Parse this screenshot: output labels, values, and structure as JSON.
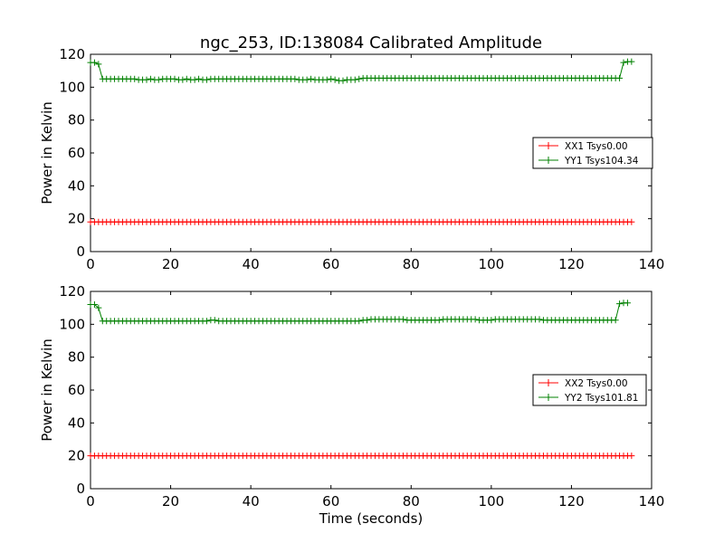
{
  "figure": {
    "title": "ngc_253, ID:138084 Calibrated Amplitude",
    "xlabel": "Time (seconds)",
    "background": "#ffffff"
  },
  "chart_data": [
    {
      "type": "line",
      "title": "ngc_253, ID:138084 Calibrated Amplitude",
      "xlabel": "",
      "ylabel": "Power in Kelvin",
      "xlim": [
        0,
        140
      ],
      "ylim": [
        0,
        120
      ],
      "xticks": [
        0,
        20,
        40,
        60,
        80,
        100,
        120,
        140
      ],
      "yticks": [
        0,
        20,
        40,
        60,
        80,
        100,
        120
      ],
      "grid": false,
      "legend_position": "right",
      "x_start": 0,
      "x_step": 1,
      "series": [
        {
          "name": "XX1 Tsys0.00",
          "color": "#ff0000",
          "marker": "+",
          "values": [
            18,
            18,
            18,
            18,
            18,
            18,
            18,
            18,
            18,
            18,
            18,
            18,
            18,
            18,
            18,
            18,
            18,
            18,
            18,
            18,
            18,
            18,
            18,
            18,
            18,
            18,
            18,
            18,
            18,
            18,
            18,
            18,
            18,
            18,
            18,
            18,
            18,
            18,
            18,
            18,
            18,
            18,
            18,
            18,
            18,
            18,
            18,
            18,
            18,
            18,
            18,
            18,
            18,
            18,
            18,
            18,
            18,
            18,
            18,
            18,
            18,
            18,
            18,
            18,
            18,
            18,
            18,
            18,
            18,
            18,
            18,
            18,
            18,
            18,
            18,
            18,
            18,
            18,
            18,
            18,
            18,
            18,
            18,
            18,
            18,
            18,
            18,
            18,
            18,
            18,
            18,
            18,
            18,
            18,
            18,
            18,
            18,
            18,
            18,
            18,
            18,
            18,
            18,
            18,
            18,
            18,
            18,
            18,
            18,
            18,
            18,
            18,
            18,
            18,
            18,
            18,
            18,
            18,
            18,
            18,
            18,
            18,
            18,
            18,
            18,
            18,
            18,
            18,
            18,
            18,
            18,
            18,
            18,
            18,
            18,
            18
          ]
        },
        {
          "name": "YY1 Tsys104.34",
          "color": "#008000",
          "marker": "+",
          "values": [
            115,
            115,
            114,
            105,
            105,
            105,
            105,
            105,
            105,
            105,
            105,
            105,
            104.5,
            104.5,
            104.5,
            105,
            104.5,
            104.5,
            105,
            105,
            105,
            105,
            104.5,
            104.5,
            105,
            104.5,
            104.5,
            105,
            104.5,
            104.5,
            105,
            105,
            105,
            105,
            105,
            105,
            105,
            105,
            105,
            105,
            105,
            105,
            105,
            105,
            105,
            105,
            105,
            105,
            105,
            105,
            105,
            105,
            104.5,
            104.5,
            104.5,
            105,
            104.5,
            104.5,
            104.5,
            104.5,
            105,
            104.5,
            104,
            104,
            104.5,
            104.5,
            104.5,
            105,
            105.5,
            105.5,
            105.5,
            105.5,
            105.5,
            105.5,
            105.5,
            105.5,
            105.5,
            105.5,
            105.5,
            105.5,
            105.5,
            105.5,
            105.5,
            105.5,
            105.5,
            105.5,
            105.5,
            105.5,
            105.5,
            105.5,
            105.5,
            105.5,
            105.5,
            105.5,
            105.5,
            105.5,
            105.5,
            105.5,
            105.5,
            105.5,
            105.5,
            105.5,
            105.5,
            105.5,
            105.5,
            105.5,
            105.5,
            105.5,
            105.5,
            105.5,
            105.5,
            105.5,
            105.5,
            105.5,
            105.5,
            105.5,
            105.5,
            105.5,
            105.5,
            105.5,
            105.5,
            105.5,
            105.5,
            105.5,
            105.5,
            105.5,
            105.5,
            105.5,
            105.5,
            105.5,
            105.5,
            105.5,
            105.5,
            115,
            115.5,
            115.5
          ]
        }
      ]
    },
    {
      "type": "line",
      "title": "",
      "xlabel": "Time (seconds)",
      "ylabel": "Power in Kelvin",
      "xlim": [
        0,
        140
      ],
      "ylim": [
        0,
        120
      ],
      "xticks": [
        0,
        20,
        40,
        60,
        80,
        100,
        120,
        140
      ],
      "yticks": [
        0,
        20,
        40,
        60,
        80,
        100,
        120
      ],
      "grid": false,
      "legend_position": "right",
      "x_start": 0,
      "x_step": 1,
      "series": [
        {
          "name": "XX2 Tsys0.00",
          "color": "#ff0000",
          "marker": "+",
          "values": [
            20,
            20,
            20,
            20,
            20,
            20,
            20,
            20,
            20,
            20,
            20,
            20,
            20,
            20,
            20,
            20,
            20,
            20,
            20,
            20,
            20,
            20,
            20,
            20,
            20,
            20,
            20,
            20,
            20,
            20,
            20,
            20,
            20,
            20,
            20,
            20,
            20,
            20,
            20,
            20,
            20,
            20,
            20,
            20,
            20,
            20,
            20,
            20,
            20,
            20,
            20,
            20,
            20,
            20,
            20,
            20,
            20,
            20,
            20,
            20,
            20,
            20,
            20,
            20,
            20,
            20,
            20,
            20,
            20,
            20,
            20,
            20,
            20,
            20,
            20,
            20,
            20,
            20,
            20,
            20,
            20,
            20,
            20,
            20,
            20,
            20,
            20,
            20,
            20,
            20,
            20,
            20,
            20,
            20,
            20,
            20,
            20,
            20,
            20,
            20,
            20,
            20,
            20,
            20,
            20,
            20,
            20,
            20,
            20,
            20,
            20,
            20,
            20,
            20,
            20,
            20,
            20,
            20,
            20,
            20,
            20,
            20,
            20,
            20,
            20,
            20,
            20,
            20,
            20,
            20,
            20,
            20,
            20,
            20,
            20,
            20
          ]
        },
        {
          "name": "YY2 Tsys101.81",
          "color": "#008000",
          "marker": "+",
          "values": [
            112,
            112,
            110,
            102,
            102,
            102,
            102,
            102,
            102,
            102,
            102,
            102,
            102,
            102,
            102,
            102,
            102,
            102,
            102,
            102,
            102,
            102,
            102,
            102,
            102,
            102,
            102,
            102,
            102,
            102,
            102.5,
            102.5,
            102,
            102,
            102,
            102,
            102,
            102,
            102,
            102,
            102,
            102,
            102,
            102,
            102,
            102,
            102,
            102,
            102,
            102,
            102,
            102,
            102,
            102,
            102,
            102,
            102,
            102,
            102,
            102,
            102,
            102,
            102,
            102,
            102,
            102,
            102,
            102,
            102.5,
            102.5,
            103,
            103,
            103,
            103,
            103,
            103,
            103,
            103,
            103,
            102.5,
            102.5,
            102.5,
            102.5,
            102.5,
            102.5,
            102.5,
            102.5,
            102.5,
            103,
            103,
            103,
            103,
            103,
            103,
            103,
            103,
            103,
            102.5,
            102.5,
            102.5,
            102.5,
            103,
            103,
            103,
            103,
            103,
            103,
            103,
            103,
            103,
            103,
            103,
            103,
            102.5,
            102.5,
            102.5,
            102.5,
            102.5,
            102.5,
            102.5,
            102.5,
            102.5,
            102.5,
            102.5,
            102.5,
            102.5,
            102.5,
            102.5,
            102.5,
            102.5,
            102.5,
            102.5,
            112.5,
            113,
            113
          ]
        }
      ]
    }
  ]
}
